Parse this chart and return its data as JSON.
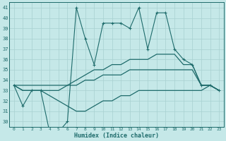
{
  "xlabel": "Humidex (Indice chaleur)",
  "ylabel": "",
  "background_color": "#c5e8e8",
  "grid_color": "#a8d0d0",
  "line_color": "#1e6b6b",
  "x": [
    0,
    1,
    2,
    3,
    4,
    5,
    6,
    7,
    8,
    9,
    10,
    11,
    12,
    13,
    14,
    15,
    16,
    17,
    18,
    19,
    20,
    21,
    22,
    23
  ],
  "y_main": [
    33.5,
    31.5,
    33.0,
    33.0,
    29.0,
    29.0,
    30.0,
    41.0,
    38.0,
    35.5,
    39.5,
    39.5,
    39.5,
    39.0,
    41.0,
    37.0,
    40.5,
    40.5,
    37.0,
    36.0,
    35.5,
    33.5,
    33.5,
    33.0
  ],
  "y_upper": [
    33.5,
    33.5,
    33.5,
    33.5,
    33.5,
    33.5,
    33.5,
    34.0,
    34.5,
    35.0,
    35.0,
    35.5,
    35.5,
    36.0,
    36.0,
    36.0,
    36.5,
    36.5,
    36.5,
    35.5,
    35.5,
    33.5,
    33.5,
    33.0
  ],
  "y_middle": [
    33.5,
    33.0,
    33.0,
    33.0,
    33.0,
    33.0,
    33.5,
    33.5,
    34.0,
    34.0,
    34.5,
    34.5,
    34.5,
    35.0,
    35.0,
    35.0,
    35.0,
    35.0,
    35.0,
    35.0,
    35.0,
    33.5,
    33.5,
    33.0
  ],
  "y_lower": [
    33.5,
    33.0,
    33.0,
    33.0,
    32.5,
    32.0,
    31.5,
    31.0,
    31.0,
    31.5,
    32.0,
    32.0,
    32.5,
    32.5,
    33.0,
    33.0,
    33.0,
    33.0,
    33.0,
    33.0,
    33.0,
    33.0,
    33.5,
    33.0
  ],
  "ylim": [
    29.5,
    41.5
  ],
  "xlim": [
    -0.5,
    23.5
  ],
  "yticks": [
    30,
    31,
    32,
    33,
    34,
    35,
    36,
    37,
    38,
    39,
    40,
    41
  ],
  "xticks": [
    0,
    1,
    2,
    3,
    4,
    5,
    6,
    7,
    8,
    9,
    10,
    11,
    12,
    13,
    14,
    15,
    16,
    17,
    18,
    19,
    20,
    21,
    22,
    23
  ]
}
